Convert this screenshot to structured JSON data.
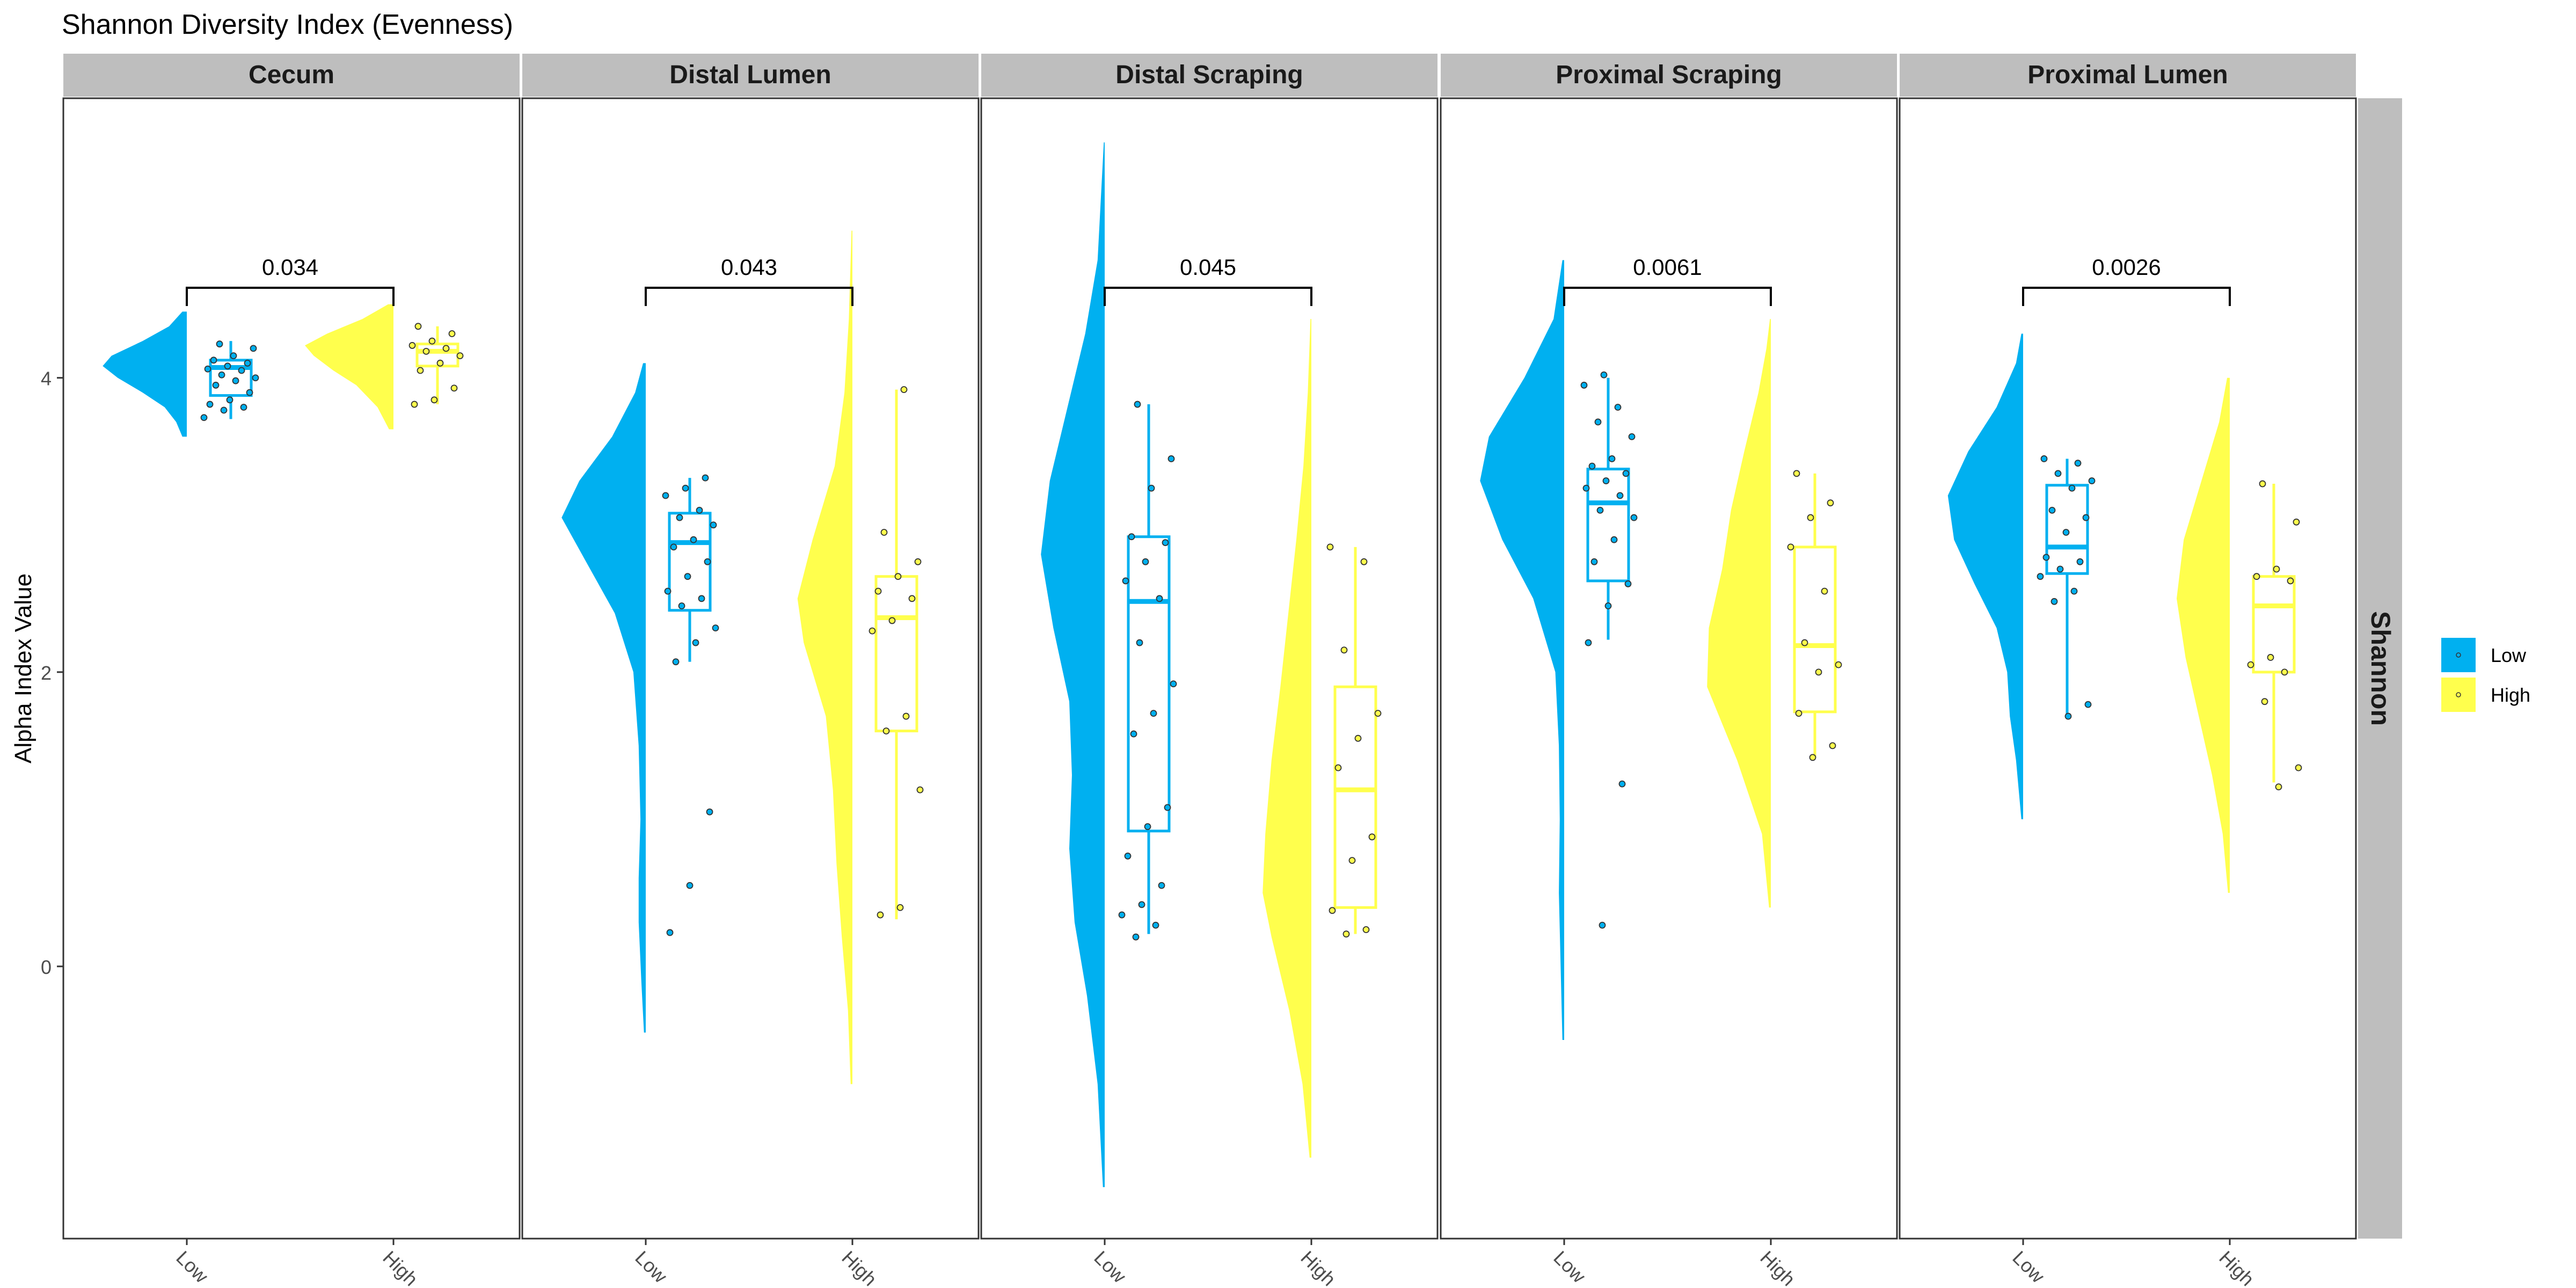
{
  "chart_data": {
    "type": "raincloud",
    "title": "Shannon Diversity Index (Evenness)",
    "ylabel": "Alpha Index Value",
    "xlabel": "",
    "ylim": [
      -1.85,
      5.9
    ],
    "y_ticks": [
      0,
      2,
      4
    ],
    "x_categories": [
      "Low",
      "High"
    ],
    "strip_right_label": "Shannon",
    "legend": {
      "position": "right",
      "items": [
        {
          "label": "Low",
          "color": "#00B0F0"
        },
        {
          "label": "High",
          "color": "#FFFF4D"
        }
      ]
    },
    "colors": {
      "Low": "#00B0F0",
      "High": "#FFFF4D",
      "strip": "#BEBEBE"
    },
    "panels": [
      {
        "name": "Cecum",
        "p_value": "0.034",
        "groups": [
          {
            "group": "Low",
            "violin": [
              [
                3.6,
                0.05
              ],
              [
                3.7,
                0.12
              ],
              [
                3.8,
                0.25
              ],
              [
                3.9,
                0.5
              ],
              [
                4.0,
                0.78
              ],
              [
                4.08,
                0.95
              ],
              [
                4.15,
                0.85
              ],
              [
                4.25,
                0.5
              ],
              [
                4.35,
                0.2
              ],
              [
                4.45,
                0.05
              ]
            ],
            "box": {
              "q1": 3.88,
              "median": 4.07,
              "q3": 4.12,
              "whisker_low": 3.72,
              "whisker_high": 4.25
            },
            "points": [
              3.73,
              3.78,
              3.8,
              3.82,
              3.85,
              3.9,
              3.95,
              3.98,
              4.0,
              4.02,
              4.05,
              4.06,
              4.08,
              4.1,
              4.12,
              4.15,
              4.2,
              4.23
            ]
          },
          {
            "group": "High",
            "violin": [
              [
                3.65,
                0.05
              ],
              [
                3.8,
                0.18
              ],
              [
                3.95,
                0.42
              ],
              [
                4.05,
                0.68
              ],
              [
                4.15,
                0.9
              ],
              [
                4.22,
                1.0
              ],
              [
                4.3,
                0.75
              ],
              [
                4.4,
                0.35
              ],
              [
                4.5,
                0.06
              ]
            ],
            "box": {
              "q1": 4.08,
              "median": 4.18,
              "q3": 4.23,
              "whisker_low": 3.82,
              "whisker_high": 4.35
            },
            "points": [
              3.82,
              3.85,
              3.93,
              4.05,
              4.1,
              4.15,
              4.18,
              4.2,
              4.22,
              4.25,
              4.3,
              4.35
            ]
          }
        ]
      },
      {
        "name": "Distal Lumen",
        "p_value": "0.043",
        "groups": [
          {
            "group": "Low",
            "violin": [
              [
                -0.45,
                0.02
              ],
              [
                -0.1,
                0.05
              ],
              [
                0.3,
                0.08
              ],
              [
                0.6,
                0.08
              ],
              [
                1.0,
                0.06
              ],
              [
                1.5,
                0.08
              ],
              [
                2.0,
                0.14
              ],
              [
                2.4,
                0.35
              ],
              [
                2.8,
                0.72
              ],
              [
                3.05,
                0.95
              ],
              [
                3.3,
                0.75
              ],
              [
                3.6,
                0.38
              ],
              [
                3.9,
                0.12
              ],
              [
                4.1,
                0.03
              ]
            ],
            "box": {
              "q1": 2.42,
              "median": 2.88,
              "q3": 3.08,
              "whisker_low": 2.07,
              "whisker_high": 3.32
            },
            "points": [
              0.23,
              0.55,
              1.05,
              2.07,
              2.2,
              2.3,
              2.45,
              2.5,
              2.55,
              2.65,
              2.75,
              2.85,
              2.9,
              3.0,
              3.05,
              3.1,
              3.2,
              3.25,
              3.32
            ]
          },
          {
            "group": "High",
            "violin": [
              [
                -0.8,
                0.02
              ],
              [
                -0.3,
                0.05
              ],
              [
                0.2,
                0.12
              ],
              [
                0.7,
                0.18
              ],
              [
                1.2,
                0.22
              ],
              [
                1.7,
                0.3
              ],
              [
                2.2,
                0.55
              ],
              [
                2.5,
                0.62
              ],
              [
                2.9,
                0.45
              ],
              [
                3.4,
                0.2
              ],
              [
                3.9,
                0.09
              ],
              [
                4.4,
                0.04
              ],
              [
                5.0,
                0.01
              ]
            ],
            "box": {
              "q1": 1.6,
              "median": 2.37,
              "q3": 2.65,
              "whisker_low": 0.32,
              "whisker_high": 3.92
            },
            "points": [
              0.35,
              0.4,
              1.2,
              1.6,
              1.7,
              2.28,
              2.35,
              2.5,
              2.55,
              2.65,
              2.75,
              2.95,
              3.92
            ]
          }
        ]
      },
      {
        "name": "Distal Scraping",
        "p_value": "0.045",
        "groups": [
          {
            "group": "Low",
            "violin": [
              [
                -1.5,
                0.02
              ],
              [
                -0.8,
                0.08
              ],
              [
                -0.2,
                0.2
              ],
              [
                0.3,
                0.34
              ],
              [
                0.8,
                0.4
              ],
              [
                1.3,
                0.37
              ],
              [
                1.8,
                0.4
              ],
              [
                2.3,
                0.58
              ],
              [
                2.8,
                0.72
              ],
              [
                3.3,
                0.62
              ],
              [
                3.8,
                0.42
              ],
              [
                4.3,
                0.22
              ],
              [
                4.8,
                0.08
              ],
              [
                5.6,
                0.01
              ]
            ],
            "box": {
              "q1": 0.92,
              "median": 2.48,
              "q3": 2.92,
              "whisker_low": 0.22,
              "whisker_high": 3.82
            },
            "points": [
              0.2,
              0.28,
              0.35,
              0.42,
              0.55,
              0.75,
              0.95,
              1.08,
              1.58,
              1.72,
              1.92,
              2.2,
              2.5,
              2.62,
              2.75,
              2.88,
              2.92,
              3.25,
              3.45,
              3.82
            ]
          },
          {
            "group": "High",
            "violin": [
              [
                -1.3,
                0.02
              ],
              [
                -0.8,
                0.1
              ],
              [
                -0.3,
                0.25
              ],
              [
                0.2,
                0.45
              ],
              [
                0.5,
                0.55
              ],
              [
                0.9,
                0.52
              ],
              [
                1.4,
                0.45
              ],
              [
                1.9,
                0.35
              ],
              [
                2.4,
                0.26
              ],
              [
                2.9,
                0.17
              ],
              [
                3.4,
                0.09
              ],
              [
                3.9,
                0.04
              ],
              [
                4.4,
                0.01
              ]
            ],
            "box": {
              "q1": 0.4,
              "median": 1.2,
              "q3": 1.9,
              "whisker_low": 0.22,
              "whisker_high": 2.85
            },
            "points": [
              0.22,
              0.25,
              0.38,
              0.72,
              0.88,
              1.35,
              1.55,
              1.72,
              2.15,
              2.75,
              2.85
            ]
          }
        ]
      },
      {
        "name": "Proximal Scraping",
        "p_value": "0.0061",
        "groups": [
          {
            "group": "Low",
            "violin": [
              [
                -0.5,
                0.02
              ],
              [
                0.0,
                0.04
              ],
              [
                0.5,
                0.06
              ],
              [
                1.0,
                0.05
              ],
              [
                1.5,
                0.06
              ],
              [
                2.0,
                0.1
              ],
              [
                2.5,
                0.35
              ],
              [
                2.9,
                0.7
              ],
              [
                3.3,
                0.95
              ],
              [
                3.6,
                0.85
              ],
              [
                4.0,
                0.45
              ],
              [
                4.4,
                0.12
              ],
              [
                4.8,
                0.02
              ]
            ],
            "box": {
              "q1": 2.62,
              "median": 3.15,
              "q3": 3.38,
              "whisker_low": 2.22,
              "whisker_high": 4.0
            },
            "points": [
              0.28,
              1.24,
              2.2,
              2.45,
              2.6,
              2.75,
              2.9,
              3.05,
              3.1,
              3.2,
              3.25,
              3.3,
              3.35,
              3.4,
              3.45,
              3.6,
              3.7,
              3.8,
              3.95,
              4.02
            ]
          },
          {
            "group": "High",
            "violin": [
              [
                0.4,
                0.02
              ],
              [
                0.9,
                0.1
              ],
              [
                1.4,
                0.38
              ],
              [
                1.9,
                0.72
              ],
              [
                2.3,
                0.7
              ],
              [
                2.7,
                0.55
              ],
              [
                3.1,
                0.45
              ],
              [
                3.5,
                0.3
              ],
              [
                3.9,
                0.14
              ],
              [
                4.2,
                0.05
              ],
              [
                4.4,
                0.01
              ]
            ],
            "box": {
              "q1": 1.73,
              "median": 2.18,
              "q3": 2.85,
              "whisker_low": 1.42,
              "whisker_high": 3.35
            },
            "points": [
              1.42,
              1.5,
              1.72,
              2.0,
              2.05,
              2.2,
              2.55,
              2.85,
              3.05,
              3.15,
              3.35
            ]
          }
        ]
      },
      {
        "name": "Proximal Lumen",
        "p_value": "0.0026",
        "groups": [
          {
            "group": "Low",
            "violin": [
              [
                1.0,
                0.02
              ],
              [
                1.4,
                0.08
              ],
              [
                1.7,
                0.15
              ],
              [
                2.0,
                0.18
              ],
              [
                2.3,
                0.3
              ],
              [
                2.6,
                0.55
              ],
              [
                2.9,
                0.78
              ],
              [
                3.2,
                0.85
              ],
              [
                3.5,
                0.62
              ],
              [
                3.8,
                0.3
              ],
              [
                4.1,
                0.08
              ],
              [
                4.3,
                0.02
              ]
            ],
            "box": {
              "q1": 2.67,
              "median": 2.85,
              "q3": 3.27,
              "whisker_low": 1.7,
              "whisker_high": 3.45
            },
            "points": [
              1.7,
              1.78,
              2.48,
              2.55,
              2.65,
              2.7,
              2.75,
              2.78,
              2.95,
              3.05,
              3.1,
              3.25,
              3.3,
              3.35,
              3.42,
              3.45
            ]
          },
          {
            "group": "High",
            "violin": [
              [
                0.5,
                0.02
              ],
              [
                0.9,
                0.08
              ],
              [
                1.3,
                0.2
              ],
              [
                1.7,
                0.35
              ],
              [
                2.1,
                0.5
              ],
              [
                2.5,
                0.6
              ],
              [
                2.9,
                0.52
              ],
              [
                3.3,
                0.32
              ],
              [
                3.7,
                0.12
              ],
              [
                4.0,
                0.03
              ]
            ],
            "box": {
              "q1": 2.0,
              "median": 2.45,
              "q3": 2.65,
              "whisker_low": 1.25,
              "whisker_high": 3.28
            },
            "points": [
              1.22,
              1.35,
              1.8,
              2.0,
              2.05,
              2.1,
              2.62,
              2.65,
              2.7,
              3.02,
              3.28
            ]
          }
        ]
      }
    ]
  }
}
